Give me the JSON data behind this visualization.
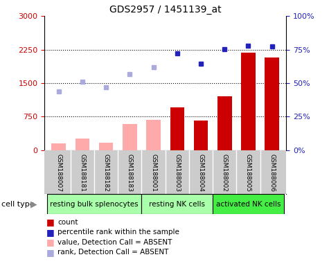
{
  "title": "GDS2957 / 1451139_at",
  "samples": [
    "GSM188007",
    "GSM188181",
    "GSM188182",
    "GSM188183",
    "GSM188001",
    "GSM188003",
    "GSM188004",
    "GSM188002",
    "GSM188005",
    "GSM188006"
  ],
  "bar_values": [
    150,
    270,
    175,
    580,
    680,
    960,
    670,
    1200,
    2175,
    2075
  ],
  "bar_absent": [
    true,
    true,
    true,
    true,
    true,
    false,
    false,
    false,
    false,
    false
  ],
  "rank_values": [
    1320,
    1530,
    1400,
    1700,
    1860,
    2165,
    1940,
    2260,
    2330,
    2325
  ],
  "rank_absent": [
    true,
    true,
    true,
    true,
    true,
    false,
    false,
    false,
    false,
    false
  ],
  "ylim_left": [
    0,
    3000
  ],
  "ylim_right": [
    0,
    100
  ],
  "yticks_left": [
    0,
    750,
    1500,
    2250,
    3000
  ],
  "yticks_right": [
    0,
    25,
    50,
    75,
    100
  ],
  "dotted_lines": [
    750,
    1500,
    2250
  ],
  "color_absent_bar": "#ffaaaa",
  "color_present_bar": "#cc0000",
  "color_absent_rank": "#aaaadd",
  "color_present_rank": "#2222bb",
  "xtick_bg": "#cccccc",
  "group_configs": [
    {
      "label": "resting bulk splenocytes",
      "color": "#aaffaa",
      "start": 0,
      "end": 3
    },
    {
      "label": "resting NK cells",
      "color": "#aaffaa",
      "start": 4,
      "end": 6
    },
    {
      "label": "activated NK cells",
      "color": "#44ee44",
      "start": 7,
      "end": 9
    }
  ],
  "legend_items": [
    {
      "color": "#cc0000",
      "label": "count"
    },
    {
      "color": "#2222bb",
      "label": "percentile rank within the sample"
    },
    {
      "color": "#ffaaaa",
      "label": "value, Detection Call = ABSENT"
    },
    {
      "color": "#aaaadd",
      "label": "rank, Detection Call = ABSENT"
    }
  ]
}
